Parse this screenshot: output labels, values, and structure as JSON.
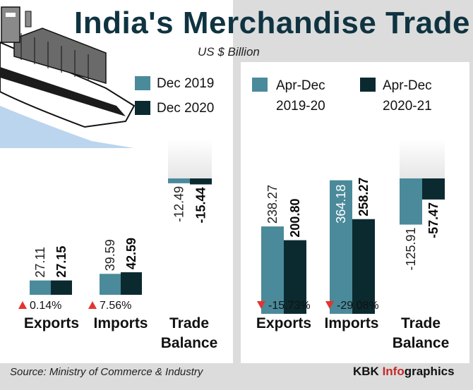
{
  "title": "India's Merchandise Trade",
  "subtitle": "US $ Billion",
  "source": "Source: Ministry of Commerce & Industry",
  "brand": {
    "prefix": "KBK ",
    "highlight": "Info",
    "suffix": "graphics"
  },
  "colors": {
    "prev": "#4a8a9a",
    "curr": "#0b2a30",
    "up": "#e3342f",
    "down": "#e3342f",
    "fade": "#e6e6e6"
  },
  "chart_data": [
    {
      "type": "bar",
      "legend": [
        "Dec 2019",
        "Dec 2020"
      ],
      "categories": [
        "Exports",
        "Imports",
        "Trade Balance"
      ],
      "category_lines": [
        [
          "Exports"
        ],
        [
          "Imports"
        ],
        [
          "Trade",
          "Balance"
        ]
      ],
      "series": [
        {
          "name": "Dec 2019",
          "values": [
            27.11,
            39.59,
            -12.49
          ]
        },
        {
          "name": "Dec 2020",
          "values": [
            27.15,
            42.59,
            -15.44
          ]
        }
      ],
      "labels": [
        [
          "27.11",
          "39.59",
          "-12.49"
        ],
        [
          "27.15",
          "42.59",
          "-15.44"
        ]
      ],
      "changes": [
        {
          "dir": "up",
          "text": "0.14%"
        },
        {
          "dir": "up",
          "text": "7.56%"
        },
        null
      ]
    },
    {
      "type": "bar",
      "legend": [
        "Apr-Dec 2019-20",
        "Apr-Dec 2020-21"
      ],
      "legend_lines": [
        [
          "Apr-Dec",
          "2019-20"
        ],
        [
          "Apr-Dec",
          "2020-21"
        ]
      ],
      "categories": [
        "Exports",
        "Imports",
        "Trade Balance"
      ],
      "category_lines": [
        [
          "Exports"
        ],
        [
          "Imports"
        ],
        [
          "Trade",
          "Balance"
        ]
      ],
      "series": [
        {
          "name": "Apr-Dec 2019-20",
          "values": [
            238.27,
            364.18,
            -125.91
          ]
        },
        {
          "name": "Apr-Dec 2020-21",
          "values": [
            200.8,
            258.27,
            -57.47
          ]
        }
      ],
      "labels": [
        [
          "238.27",
          "364.18",
          "-125.91"
        ],
        [
          "200.80",
          "258.27",
          "-57.47"
        ]
      ],
      "changes": [
        {
          "dir": "down",
          "text": "-15.73%"
        },
        {
          "dir": "down",
          "text": "-29.08%"
        },
        null
      ]
    }
  ]
}
